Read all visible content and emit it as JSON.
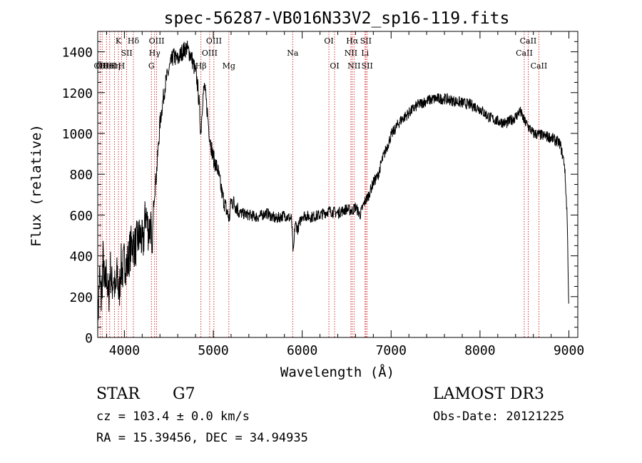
{
  "chart_data": {
    "type": "line",
    "title": "spec-56287-VB016N33V2_sp16-119.fits",
    "xlabel": "Wavelength (Å)",
    "ylabel": "Flux (relative)",
    "xlim": [
      3700,
      9100
    ],
    "ylim": [
      0,
      1500
    ],
    "xticks": [
      4000,
      5000,
      6000,
      7000,
      8000,
      9000
    ],
    "yticks": [
      0,
      200,
      400,
      600,
      800,
      1000,
      1200,
      1400
    ],
    "grid": false,
    "series": [
      {
        "name": "spectrum",
        "x": [
          3700,
          3720,
          3740,
          3760,
          3780,
          3800,
          3820,
          3840,
          3860,
          3880,
          3900,
          3920,
          3940,
          3960,
          3980,
          4000,
          4030,
          4060,
          4090,
          4120,
          4150,
          4180,
          4210,
          4240,
          4270,
          4300,
          4310,
          4330,
          4360,
          4400,
          4430,
          4460,
          4500,
          4550,
          4600,
          4650,
          4700,
          4750,
          4800,
          4820,
          4840,
          4860,
          4880,
          4900,
          4930,
          4960,
          5000,
          5050,
          5100,
          5150,
          5180,
          5200,
          5250,
          5300,
          5400,
          5500,
          5600,
          5700,
          5800,
          5880,
          5900,
          5920,
          5950,
          6000,
          6100,
          6200,
          6300,
          6400,
          6500,
          6560,
          6600,
          6650,
          6700,
          6750,
          6800,
          6850,
          6900,
          6950,
          7000,
          7100,
          7200,
          7300,
          7400,
          7500,
          7600,
          7700,
          7800,
          7900,
          8000,
          8100,
          8200,
          8300,
          8400,
          8450,
          8500,
          8550,
          8600,
          8700,
          8800,
          8900,
          8950,
          8980,
          9000
        ],
        "values": [
          60,
          300,
          180,
          380,
          220,
          330,
          170,
          350,
          250,
          300,
          200,
          320,
          190,
          360,
          320,
          380,
          350,
          420,
          470,
          440,
          480,
          500,
          450,
          620,
          520,
          560,
          380,
          680,
          800,
          1050,
          1150,
          1240,
          1310,
          1380,
          1360,
          1400,
          1420,
          1380,
          1300,
          1250,
          1150,
          1000,
          1170,
          1230,
          1120,
          980,
          880,
          820,
          700,
          620,
          580,
          670,
          650,
          610,
          600,
          590,
          610,
          580,
          600,
          580,
          400,
          560,
          530,
          600,
          590,
          600,
          620,
          610,
          630,
          620,
          640,
          600,
          660,
          700,
          760,
          790,
          870,
          930,
          990,
          1060,
          1100,
          1140,
          1160,
          1170,
          1170,
          1160,
          1150,
          1140,
          1120,
          1080,
          1060,
          1050,
          1080,
          1110,
          1060,
          1030,
          1000,
          990,
          980,
          950,
          850,
          600,
          120
        ]
      }
    ],
    "line_markers": [
      {
        "wavelength": 3727,
        "label": "OII",
        "row": 2
      },
      {
        "wavelength": 3750,
        "label": "OII",
        "row": 2
      },
      {
        "wavelength": 3798,
        "label": "HeI",
        "row": 2
      },
      {
        "wavelength": 3835,
        "label": "HeI",
        "row": 2
      },
      {
        "wavelength": 3889,
        "label": "Hη",
        "row": 2
      },
      {
        "wavelength": 3933,
        "label": "K",
        "row": 0
      },
      {
        "wavelength": 3968,
        "label": "H",
        "row": 2
      },
      {
        "wavelength": 4026,
        "label": "SII",
        "row": 1
      },
      {
        "wavelength": 4101,
        "label": "Hδ",
        "row": 0
      },
      {
        "wavelength": 4304,
        "label": "G",
        "row": 2
      },
      {
        "wavelength": 4340,
        "label": "Hγ",
        "row": 1
      },
      {
        "wavelength": 4363,
        "label": "OIII",
        "row": 0
      },
      {
        "wavelength": 4861,
        "label": "Hβ",
        "row": 2
      },
      {
        "wavelength": 4959,
        "label": "OIII",
        "row": 1
      },
      {
        "wavelength": 5007,
        "label": "OIII",
        "row": 0
      },
      {
        "wavelength": 5175,
        "label": "Mg",
        "row": 2
      },
      {
        "wavelength": 5893,
        "label": "Na",
        "row": 1
      },
      {
        "wavelength": 6300,
        "label": "OI",
        "row": 0
      },
      {
        "wavelength": 6364,
        "label": "OI",
        "row": 2
      },
      {
        "wavelength": 6548,
        "label": "NII",
        "row": 1
      },
      {
        "wavelength": 6563,
        "label": "Hα",
        "row": 0
      },
      {
        "wavelength": 6583,
        "label": "NII",
        "row": 2
      },
      {
        "wavelength": 6707,
        "label": "Li",
        "row": 1
      },
      {
        "wavelength": 6716,
        "label": "SII",
        "row": 0
      },
      {
        "wavelength": 6731,
        "label": "SII",
        "row": 2
      },
      {
        "wavelength": 8498,
        "label": "CaII",
        "row": 1
      },
      {
        "wavelength": 8542,
        "label": "CaII",
        "row": 0
      },
      {
        "wavelength": 8662,
        "label": "CaII",
        "row": 2
      }
    ]
  },
  "info": {
    "object_class": "STAR",
    "subclass": "G7",
    "survey": "LAMOST DR3",
    "cz": "cz = 103.4 ± 0.0 km/s",
    "obs_date": "Obs-Date: 20121225",
    "coords": "RA =  15.39456, DEC =  34.94935"
  },
  "colors": {
    "spectrum": "#000000",
    "marker_line": "#cc0000",
    "axes": "#000000"
  }
}
